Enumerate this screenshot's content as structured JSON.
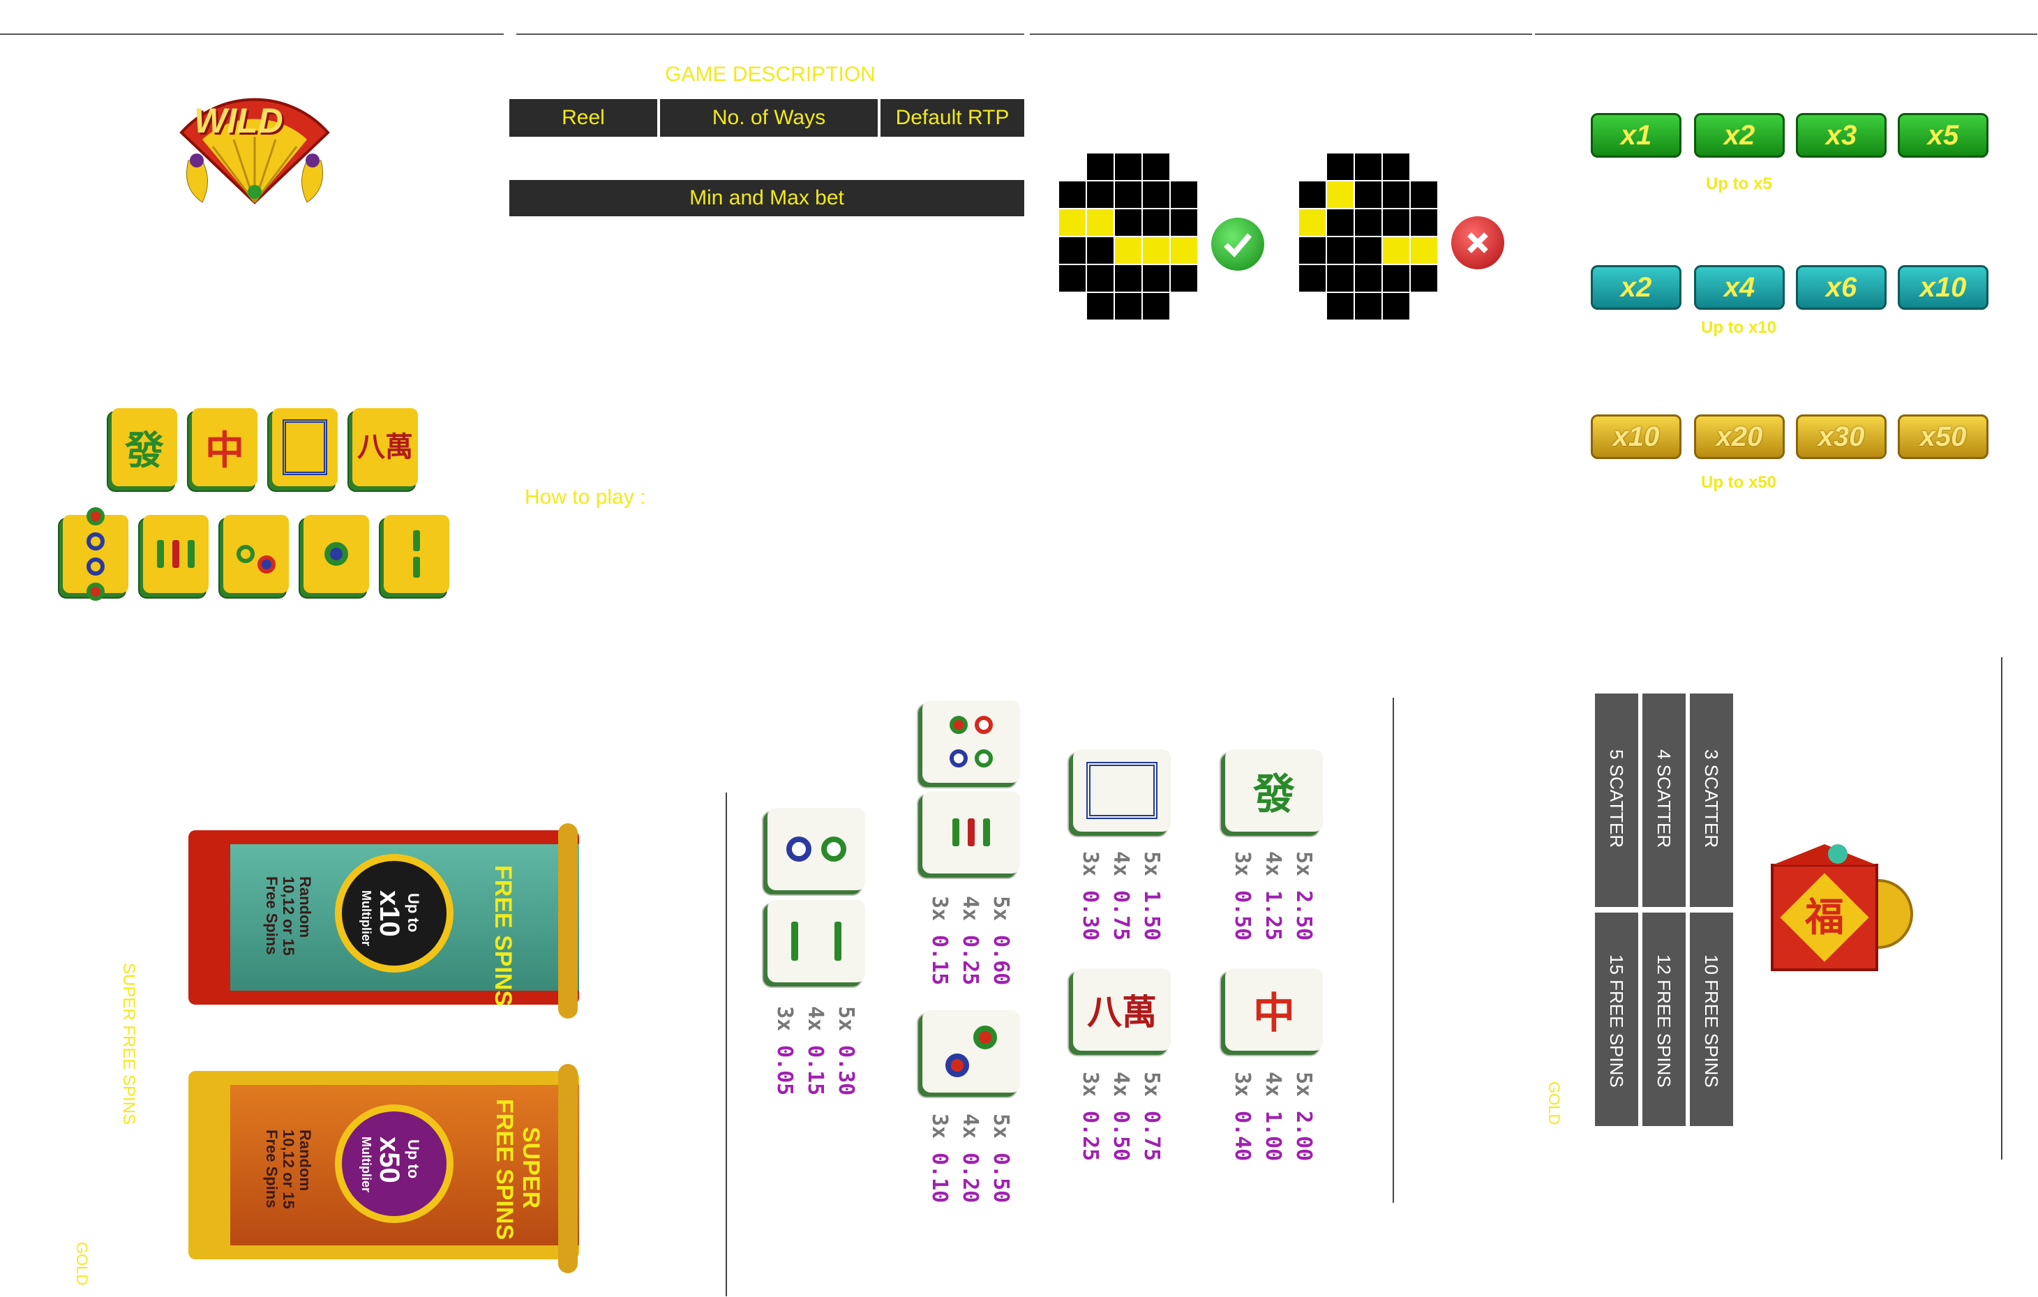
{
  "game_description": {
    "title": "GAME DESCRIPTION",
    "table_headers": [
      "Reel",
      "No. of Ways",
      "Default RTP"
    ],
    "bet_header": "Min and Max bet",
    "how_to_play": "How to play :"
  },
  "wild_symbol": {
    "label": "WILD"
  },
  "symbols": {
    "top_row": [
      "發",
      "中",
      "",
      "八萬"
    ],
    "bottom_row": [
      "4-dots",
      "bamboo",
      "2-dots",
      "1-dot",
      "2-bamboo"
    ]
  },
  "ways_examples": {
    "valid_icon": "checkmark-icon",
    "invalid_icon": "cross-icon"
  },
  "multipliers": {
    "free_spins": {
      "pills": [
        "x1",
        "x2",
        "x3",
        "x5"
      ],
      "caption": "Up to x5"
    },
    "mid": {
      "pills": [
        "x2",
        "x4",
        "x6",
        "x10"
      ],
      "caption": "Up to x10"
    },
    "super": {
      "pills": [
        "x10",
        "x20",
        "x30",
        "x50"
      ],
      "caption": "Up to x50"
    }
  },
  "banners": {
    "free_spins": {
      "title": "FREE SPINS",
      "up_to": "Up to",
      "mult": "x10",
      "mult_label": "Multiplier",
      "random": "Random",
      "spins": "10,12 or 15",
      "spins_label": "Free Spins"
    },
    "super": {
      "title_1": "SUPER",
      "title_2": "FREE SPINS",
      "up_to": "Up to",
      "mult": "x50",
      "mult_label": "Multiplier",
      "random": "Random",
      "spins": "10,12 or 15",
      "spins_label": "Free Spins"
    }
  },
  "side_labels": {
    "super_free_spins": "SUPER FREE SPINS",
    "gold_left": "GOLD",
    "gold_right": "GOLD"
  },
  "paytable": [
    {
      "tile": "2-dots",
      "lines": [
        [
          "5x",
          "0.30"
        ],
        [
          "4x",
          "0.15"
        ],
        [
          "3x",
          "0.05"
        ]
      ]
    },
    {
      "tile": "2-dots+bamboo",
      "lines": [
        [
          "5x",
          "0.60"
        ],
        [
          "4x",
          "0.25"
        ],
        [
          "3x",
          "0.15"
        ]
      ]
    },
    {
      "tile": "2-dots-diag",
      "lines": [
        [
          "5x",
          "0.50"
        ],
        [
          "4x",
          "0.20"
        ],
        [
          "3x",
          "0.10"
        ]
      ]
    },
    {
      "tile": "white-dragon",
      "lines": [
        [
          "5x",
          "1.50"
        ],
        [
          "4x",
          "0.75"
        ],
        [
          "3x",
          "0.30"
        ]
      ]
    },
    {
      "tile": "八萬",
      "lines": [
        [
          "5x",
          "0.75"
        ],
        [
          "4x",
          "0.50"
        ],
        [
          "3x",
          "0.25"
        ]
      ]
    },
    {
      "tile": "發",
      "lines": [
        [
          "5x",
          "2.50"
        ],
        [
          "4x",
          "1.25"
        ],
        [
          "3x",
          "0.50"
        ]
      ]
    },
    {
      "tile": "中",
      "lines": [
        [
          "5x",
          "2.00"
        ],
        [
          "4x",
          "1.00"
        ],
        [
          "3x",
          "0.40"
        ]
      ]
    }
  ],
  "scatter_table": {
    "scatters": [
      "3 SCATTER",
      "4 SCATTER",
      "5 SCATTER"
    ],
    "spins": [
      "10 FREE SPINS",
      "12 FREE SPINS",
      "15 FREE SPINS"
    ]
  },
  "colors": {
    "accent_yellow": "#f2ea1a",
    "dark": "#2b2b2b",
    "purple": "#a020b0"
  }
}
